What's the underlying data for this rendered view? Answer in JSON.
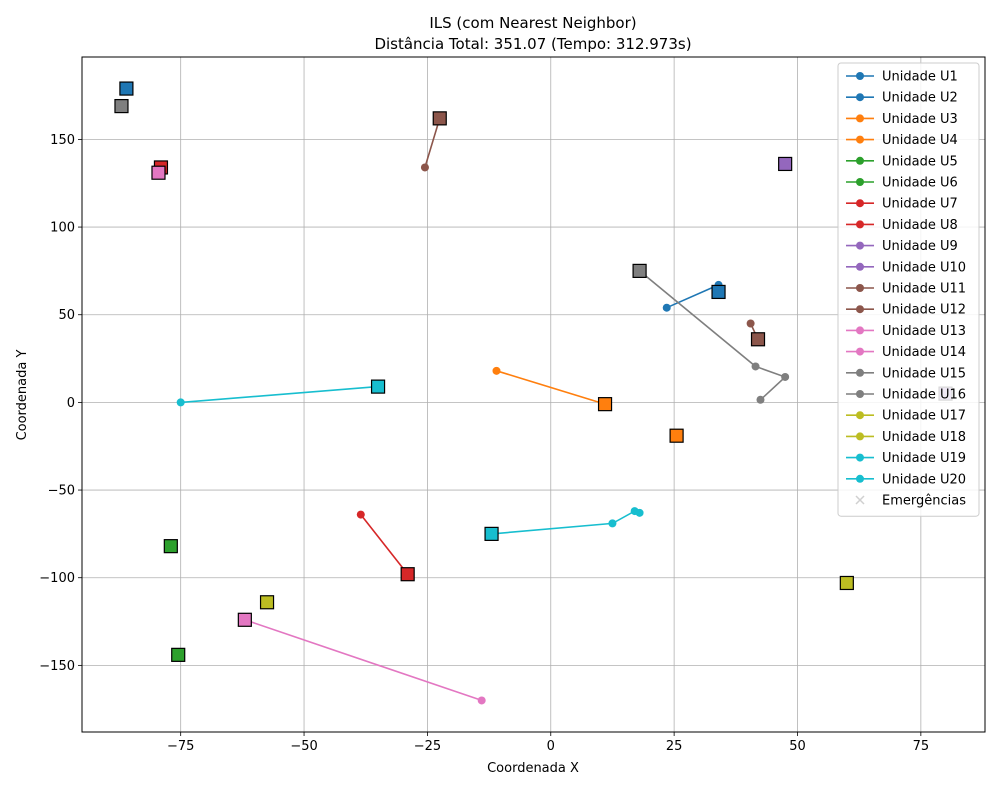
{
  "chart_data": {
    "type": "scatter",
    "title": "ILS (com Nearest Neighbor)",
    "subtitle": "Distância Total: 351.07 (Tempo: 312.973s)",
    "xlabel": "Coordenada X",
    "ylabel": "Coordenada Y",
    "xlim": [
      -95,
      88
    ],
    "ylim": [
      -188,
      197
    ],
    "xticks": [
      -75,
      -50,
      -25,
      0,
      25,
      50,
      75
    ],
    "yticks": [
      -150,
      -100,
      -50,
      0,
      50,
      100,
      150
    ],
    "grid": true,
    "legend_position": "top-right",
    "emergency_legend_label": "Emergências",
    "colors": {
      "blue": "#1f77b4",
      "orange": "#ff7f0e",
      "green": "#2ca02c",
      "red": "#d62728",
      "purple": "#9467bd",
      "brown": "#8c564b",
      "pink": "#e377c2",
      "gray": "#7f7f7f",
      "olive": "#bcbd22",
      "cyan": "#17becf",
      "emergency": "#d0d0d0"
    },
    "units": [
      {
        "name": "Unidade U1",
        "color": "#1f77b4",
        "base": [
          34,
          63
        ],
        "route": [
          [
            34,
            63
          ],
          [
            34,
            67
          ],
          [
            23.5,
            54
          ]
        ]
      },
      {
        "name": "Unidade U2",
        "color": "#1f77b4",
        "base": [
          -86,
          179
        ],
        "route": []
      },
      {
        "name": "Unidade U3",
        "color": "#ff7f0e",
        "base": [
          11,
          -1
        ],
        "route": [
          [
            11,
            -1
          ],
          [
            -11,
            18
          ]
        ]
      },
      {
        "name": "Unidade U4",
        "color": "#ff7f0e",
        "base": [
          25.5,
          -19
        ],
        "route": []
      },
      {
        "name": "Unidade U5",
        "color": "#2ca02c",
        "base": [
          -77,
          -82
        ],
        "route": []
      },
      {
        "name": "Unidade U6",
        "color": "#2ca02c",
        "base": [
          -75.5,
          -144
        ],
        "route": []
      },
      {
        "name": "Unidade U7",
        "color": "#d62728",
        "base": [
          -29,
          -98
        ],
        "route": [
          [
            -29,
            -98
          ],
          [
            -38.5,
            -64
          ]
        ]
      },
      {
        "name": "Unidade U8",
        "color": "#d62728",
        "base": [
          -79,
          134
        ],
        "route": []
      },
      {
        "name": "Unidade U9",
        "color": "#9467bd",
        "base": [
          47.5,
          136
        ],
        "route": []
      },
      {
        "name": "Unidade U10",
        "color": "#9467bd",
        "base": [
          80,
          5
        ],
        "route": []
      },
      {
        "name": "Unidade U11",
        "color": "#8c564b",
        "base": [
          -22.5,
          162
        ],
        "route": [
          [
            -22.5,
            162
          ],
          [
            -25.5,
            134
          ]
        ]
      },
      {
        "name": "Unidade U12",
        "color": "#8c564b",
        "base": [
          42,
          36
        ],
        "route": [
          [
            42,
            36
          ],
          [
            40.5,
            45
          ]
        ]
      },
      {
        "name": "Unidade U13",
        "color": "#e377c2",
        "base": [
          -62,
          -124
        ],
        "route": [
          [
            -62,
            -124
          ],
          [
            -14,
            -170
          ]
        ]
      },
      {
        "name": "Unidade U14",
        "color": "#e377c2",
        "base": [
          -79.5,
          131
        ],
        "route": []
      },
      {
        "name": "Unidade U15",
        "color": "#7f7f7f",
        "base": [
          18,
          75
        ],
        "route": [
          [
            18,
            75
          ],
          [
            41.5,
            20.5
          ],
          [
            47.5,
            14.5
          ],
          [
            42.5,
            1.5
          ]
        ]
      },
      {
        "name": "Unidade U16",
        "color": "#7f7f7f",
        "base": [
          -87,
          169
        ],
        "route": []
      },
      {
        "name": "Unidade U17",
        "color": "#bcbd22",
        "base": [
          -57.5,
          -114
        ],
        "route": []
      },
      {
        "name": "Unidade U18",
        "color": "#bcbd22",
        "base": [
          60,
          -103
        ],
        "route": []
      },
      {
        "name": "Unidade U19",
        "color": "#17becf",
        "base": [
          -35,
          9
        ],
        "route": [
          [
            -35,
            9
          ],
          [
            -75,
            0
          ]
        ]
      },
      {
        "name": "Unidade U20",
        "color": "#17becf",
        "base": [
          -12,
          -75
        ],
        "route": [
          [
            -12,
            -75
          ],
          [
            12.5,
            -69
          ],
          [
            17,
            -62
          ],
          [
            18,
            -63
          ]
        ]
      }
    ]
  }
}
